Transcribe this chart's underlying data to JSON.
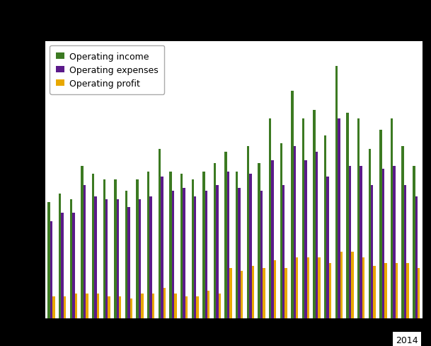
{
  "n_groups": 34,
  "operating_income": [
    42,
    45,
    43,
    55,
    52,
    50,
    50,
    46,
    50,
    53,
    61,
    53,
    52,
    50,
    53,
    56,
    60,
    53,
    62,
    56,
    72,
    63,
    82,
    72,
    75,
    66,
    91,
    74,
    72,
    61,
    68,
    72,
    62,
    55
  ],
  "operating_expenses": [
    35,
    38,
    38,
    48,
    44,
    43,
    43,
    40,
    43,
    44,
    51,
    46,
    47,
    44,
    46,
    48,
    53,
    47,
    52,
    46,
    57,
    48,
    62,
    57,
    60,
    51,
    72,
    55,
    55,
    48,
    54,
    55,
    48,
    44
  ],
  "operating_profit": [
    8,
    8,
    9,
    9,
    9,
    8,
    8,
    7,
    9,
    9,
    11,
    9,
    8,
    8,
    10,
    9,
    18,
    17,
    19,
    18,
    21,
    18,
    22,
    22,
    22,
    20,
    24,
    24,
    22,
    19,
    20,
    20,
    20,
    18
  ],
  "color_income": "#3c7a22",
  "color_expenses": "#5b1a8a",
  "color_profit": "#e8a800",
  "outer_bg": "#000000",
  "plot_bg_color": "#ffffff",
  "grid_color": "#cccccc",
  "legend_labels": [
    "Operating income",
    "Operating expenses",
    "Operating profit"
  ],
  "year_label": "2014",
  "ylim": [
    0,
    100
  ],
  "bar_width": 0.22
}
